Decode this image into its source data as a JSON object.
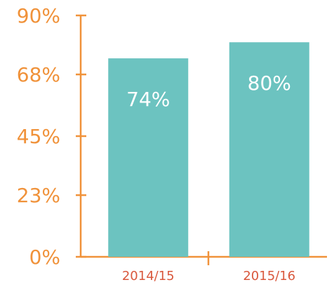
{
  "chart_data": {
    "type": "bar",
    "categories": [
      "2014/15",
      "2015/16"
    ],
    "values": [
      74,
      80
    ],
    "value_labels": [
      "74%",
      "80%"
    ],
    "color": "#6cc3c0",
    "ylim": [
      0,
      90
    ],
    "yticks": [
      {
        "value": 0,
        "label": "0%"
      },
      {
        "value": 23,
        "label": "23%"
      },
      {
        "value": 45,
        "label": "45%"
      },
      {
        "value": 68,
        "label": "68%"
      },
      {
        "value": 90,
        "label": "90%"
      }
    ]
  }
}
